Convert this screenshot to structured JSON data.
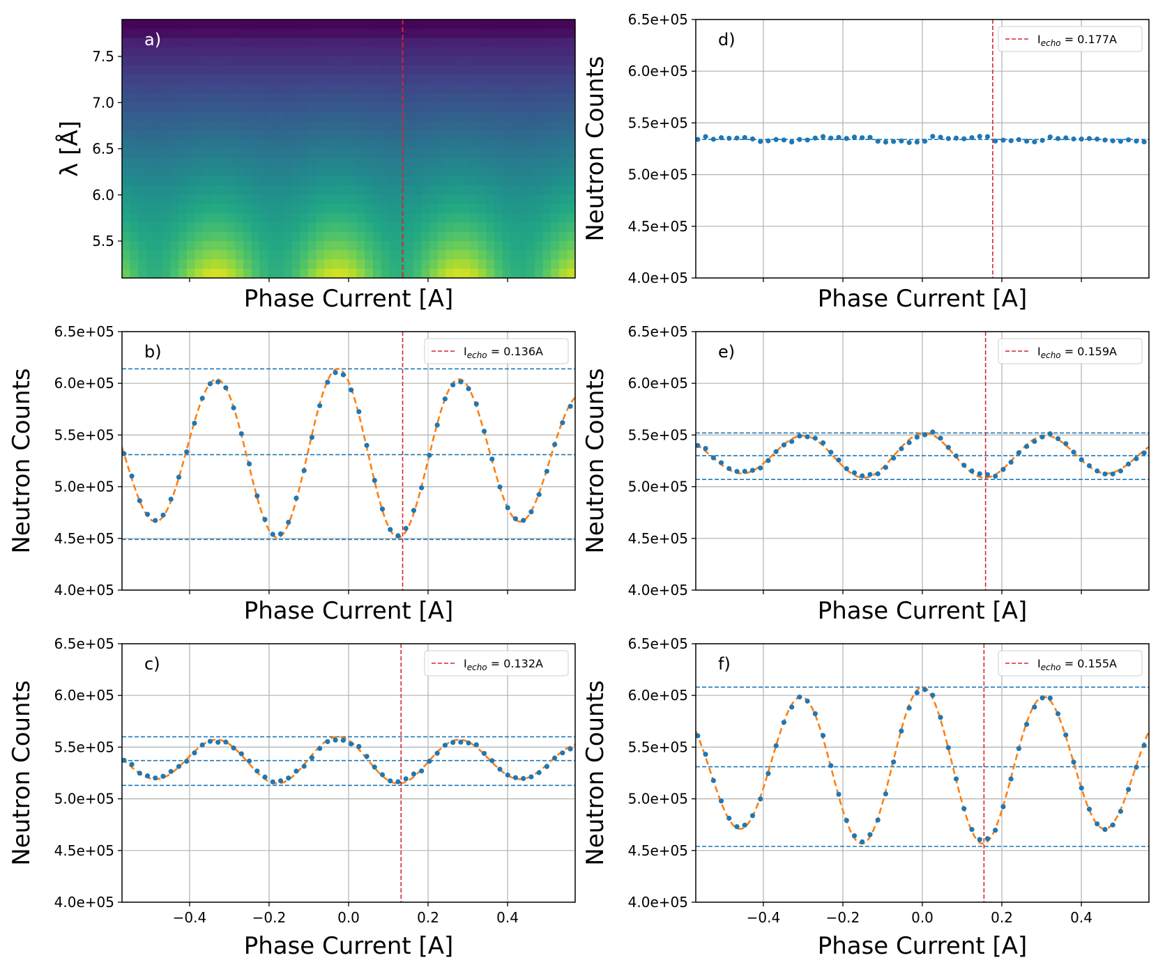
{
  "chart_data": [
    {
      "id": "a",
      "type": "heatmap",
      "panel_label": "a)",
      "xlabel": "Phase Current [A]",
      "ylabel": "λ [Å]",
      "xlim": [
        -0.57,
        0.57
      ],
      "ylim": [
        5.1,
        7.9
      ],
      "x_ticks": [
        -0.4,
        -0.2,
        0.0,
        0.2,
        0.4
      ],
      "x_tick_labels": [],
      "y_ticks": [
        5.5,
        6.0,
        6.5,
        7.0,
        7.5
      ],
      "y_tick_labels": [
        "5.5",
        "6.0",
        "6.5",
        "7.0",
        "7.5"
      ],
      "colormap": "viridis",
      "echo_line_x": 0.136,
      "grid": false
    },
    {
      "id": "b",
      "type": "scatter",
      "panel_label": "b)",
      "xlabel": "Phase Current [A]",
      "ylabel": "Neutron Counts",
      "xlim": [
        -0.57,
        0.57
      ],
      "ylim": [
        400000,
        650000
      ],
      "x_ticks": [
        -0.4,
        -0.2,
        0.0,
        0.2,
        0.4
      ],
      "x_tick_labels": [],
      "y_ticks": [
        400000,
        450000,
        500000,
        550000,
        600000,
        650000
      ],
      "y_tick_labels": [
        "4.0e+05",
        "4.5e+05",
        "5.0e+05",
        "5.5e+05",
        "6.0e+05",
        "6.5e+05"
      ],
      "fit": {
        "offset": 531000,
        "a1": 83000,
        "p1": 0.307,
        "a2": 31000,
        "p2": 0.614,
        "phase": -0.027,
        "decay": 0.35
      },
      "hlines": [
        614000,
        531000,
        449000
      ],
      "echo": {
        "x": 0.136,
        "legend_main": "I",
        "legend_sub": "echo",
        "legend_value": " = 0.136A"
      },
      "grid": true,
      "legend_placement": "top-right"
    },
    {
      "id": "c",
      "type": "scatter",
      "panel_label": "c)",
      "xlabel": "Phase Current [A]",
      "ylabel": "Neutron Counts",
      "xlim": [
        -0.57,
        0.57
      ],
      "ylim": [
        400000,
        650000
      ],
      "x_ticks": [
        -0.4,
        -0.2,
        0.0,
        0.2,
        0.4
      ],
      "x_tick_labels": [
        "−0.4",
        "−0.2",
        "0.0",
        "0.2",
        "0.4"
      ],
      "y_ticks": [
        400000,
        450000,
        500000,
        550000,
        600000,
        650000
      ],
      "y_tick_labels": [
        "4.0e+05",
        "4.5e+05",
        "5.0e+05",
        "5.5e+05",
        "6.0e+05",
        "6.5e+05"
      ],
      "fit": {
        "offset": 537000,
        "a1": 23000,
        "p1": 0.307,
        "a2": 10000,
        "p2": 0.614,
        "phase": -0.027,
        "decay": 0.35
      },
      "hlines": [
        560000,
        537000,
        513000
      ],
      "echo": {
        "x": 0.132,
        "legend_main": "I",
        "legend_sub": "echo",
        "legend_value": " = 0.132A"
      },
      "grid": true,
      "legend_placement": "top-right"
    },
    {
      "id": "d",
      "type": "scatter",
      "panel_label": "d)",
      "xlabel": "Phase Current [A]",
      "ylabel": "Neutron Counts",
      "xlim": [
        -0.57,
        0.57
      ],
      "ylim": [
        400000,
        650000
      ],
      "x_ticks": [
        -0.4,
        -0.2,
        0.0,
        0.2,
        0.4
      ],
      "x_tick_labels": [],
      "y_ticks": [
        400000,
        450000,
        500000,
        550000,
        600000,
        650000
      ],
      "y_tick_labels": [
        "4.0e+05",
        "4.5e+05",
        "5.0e+05",
        "5.5e+05",
        "6.0e+05",
        "6.5e+05"
      ],
      "fit": {
        "offset": 534000,
        "a1": 0,
        "p1": 0.307,
        "a2": 0,
        "p2": 0.614,
        "phase": 0,
        "decay": 0.35
      },
      "hlines": [
        534000
      ],
      "echo": {
        "x": 0.177,
        "legend_main": "I",
        "legend_sub": "echo",
        "legend_value": " = 0.177A"
      },
      "grid": true,
      "legend_placement": "top-right"
    },
    {
      "id": "e",
      "type": "scatter",
      "panel_label": "e)",
      "xlabel": "Phase Current [A]",
      "ylabel": "Neutron Counts",
      "xlim": [
        -0.57,
        0.57
      ],
      "ylim": [
        400000,
        650000
      ],
      "x_ticks": [
        -0.4,
        -0.2,
        0.0,
        0.2,
        0.4
      ],
      "x_tick_labels": [],
      "y_ticks": [
        400000,
        450000,
        500000,
        550000,
        600000,
        650000
      ],
      "y_tick_labels": [
        "4.0e+05",
        "4.5e+05",
        "5.0e+05",
        "5.5e+05",
        "6.0e+05",
        "6.5e+05"
      ],
      "fit": {
        "offset": 530000,
        "a1": 22000,
        "p1": 0.307,
        "a2": 9000,
        "p2": 0.614,
        "phase": 0.005,
        "decay": 0.35
      },
      "hlines": [
        552000,
        530000,
        507000
      ],
      "echo": {
        "x": 0.159,
        "legend_main": "I",
        "legend_sub": "echo",
        "legend_value": " = 0.159A"
      },
      "grid": true,
      "legend_placement": "top-right"
    },
    {
      "id": "f",
      "type": "scatter",
      "panel_label": "f)",
      "xlabel": "Phase Current [A]",
      "ylabel": "Neutron Counts",
      "xlim": [
        -0.57,
        0.57
      ],
      "ylim": [
        400000,
        650000
      ],
      "x_ticks": [
        -0.4,
        -0.2,
        0.0,
        0.2,
        0.4
      ],
      "x_tick_labels": [
        "−0.4",
        "−0.2",
        "0.0",
        "0.2",
        "0.4"
      ],
      "y_ticks": [
        400000,
        450000,
        500000,
        550000,
        600000,
        650000
      ],
      "y_tick_labels": [
        "4.0e+05",
        "4.5e+05",
        "5.0e+05",
        "5.5e+05",
        "6.0e+05",
        "6.5e+05"
      ],
      "fit": {
        "offset": 531000,
        "a1": 77000,
        "p1": 0.307,
        "a2": 30000,
        "p2": 0.614,
        "phase": 0.0,
        "decay": 0.35
      },
      "hlines": [
        608000,
        531000,
        454000
      ],
      "echo": {
        "x": 0.155,
        "legend_main": "I",
        "legend_sub": "echo",
        "legend_value": " = 0.155A"
      },
      "grid": true,
      "legend_placement": "top-right"
    }
  ],
  "colors": {
    "points": "#1f77b4",
    "fit": "#ff7f0e",
    "hlines": "#1f77b4",
    "echo": "#d62728",
    "grid": "#b0b0b0"
  }
}
